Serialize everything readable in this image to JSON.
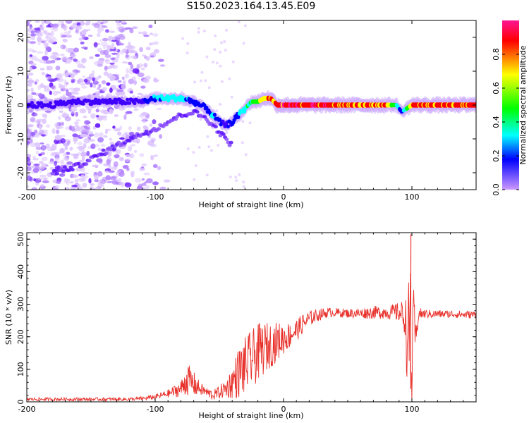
{
  "title": "S150.2023.164.13.45.E09",
  "chart_data": [
    {
      "type": "heatmap",
      "xlabel": "Height of straight line (km)",
      "ylabel": "Frequency (Hz)",
      "xlim": [
        -200,
        150
      ],
      "ylim": [
        -25,
        25
      ],
      "x_ticks": [
        -200,
        -100,
        0,
        100
      ],
      "y_ticks": [
        20,
        10,
        0,
        -10,
        -20
      ],
      "colorbar": {
        "label": "Normalized spectral amplitude",
        "range": [
          0,
          1
        ],
        "ticks": [
          "0.0",
          "0.2",
          "0.4",
          "0.6",
          "0.8"
        ],
        "colors": [
          "#ff1493",
          "#ff0000",
          "#ffff00",
          "#00ff00",
          "#00ffff",
          "#0000ff",
          "#cc99ff"
        ]
      },
      "ridge": {
        "x": [
          -195,
          -180,
          -165,
          -150,
          -135,
          -120,
          -110,
          -100,
          -90,
          -80,
          -70,
          -60,
          -55,
          -50,
          -45,
          -40,
          -35,
          -30,
          -25,
          -20,
          -15,
          -10,
          -5,
          0,
          20,
          40,
          60,
          80,
          88,
          92,
          100,
          120,
          150
        ],
        "y": [
          0,
          0,
          1,
          1,
          1,
          1,
          1,
          2,
          2,
          2,
          1,
          -1,
          -3,
          -5,
          -6,
          -5,
          -3,
          -1,
          1,
          1,
          2,
          2,
          0,
          0,
          0,
          0,
          0,
          0,
          0,
          -2,
          0,
          0,
          0
        ],
        "amplitude": [
          0.2,
          0.2,
          0.2,
          0.2,
          0.2,
          0.25,
          0.3,
          0.45,
          0.55,
          0.5,
          0.4,
          0.4,
          0.45,
          0.35,
          0.3,
          0.35,
          0.45,
          0.55,
          0.6,
          0.75,
          0.85,
          0.9,
          0.95,
          1.0,
          0.98,
          0.95,
          0.95,
          0.9,
          0.55,
          0.35,
          0.95,
          0.95,
          0.95
        ]
      },
      "secondary_ridge": {
        "x": [
          -180,
          -160,
          -140,
          -120,
          -100,
          -90,
          -80,
          -70,
          -60,
          -50,
          -40
        ],
        "y": [
          -20,
          -18,
          -14,
          -10,
          -7,
          -5,
          -3,
          -2,
          -4,
          -8,
          -12
        ]
      }
    },
    {
      "type": "line",
      "xlabel": "Height of straight line (km)",
      "ylabel": "SNR (10 * v/v)",
      "xlim": [
        -200,
        150
      ],
      "ylim": [
        0,
        520
      ],
      "x_ticks": [
        -200,
        -100,
        0,
        100
      ],
      "y_ticks": [
        0,
        100,
        200,
        300,
        400,
        500
      ],
      "color": "#e8302a",
      "series": [
        {
          "x": [
            -200,
            -180,
            -160,
            -140,
            -120,
            -110,
            -100,
            -90,
            -80,
            -75,
            -70,
            -65,
            -60,
            -55,
            -50,
            -45,
            -40,
            -35,
            -30,
            -25,
            -20,
            -15,
            -10,
            -5,
            0,
            5,
            10,
            15,
            20,
            25,
            30,
            35,
            40,
            50,
            60,
            70,
            80,
            90,
            95,
            97,
            99,
            100,
            101,
            103,
            105,
            110,
            120,
            130,
            140,
            150
          ],
          "y": [
            8,
            8,
            8,
            8,
            8,
            10,
            15,
            25,
            40,
            70,
            55,
            40,
            30,
            20,
            30,
            40,
            60,
            90,
            110,
            130,
            150,
            165,
            175,
            185,
            195,
            205,
            220,
            240,
            255,
            265,
            270,
            275,
            275,
            272,
            272,
            275,
            275,
            275,
            260,
            120,
            300,
            40,
            290,
            180,
            270,
            270,
            270,
            270,
            268,
            268
          ],
          "noise": [
            5,
            5,
            5,
            5,
            5,
            6,
            8,
            12,
            25,
            50,
            40,
            20,
            15,
            15,
            20,
            30,
            50,
            80,
            90,
            90,
            90,
            80,
            70,
            60,
            50,
            40,
            35,
            30,
            25,
            20,
            18,
            15,
            14,
            14,
            16,
            20,
            20,
            30,
            60,
            200,
            250,
            100,
            80,
            60,
            20,
            14,
            12,
            12,
            12,
            12
          ]
        }
      ]
    }
  ]
}
